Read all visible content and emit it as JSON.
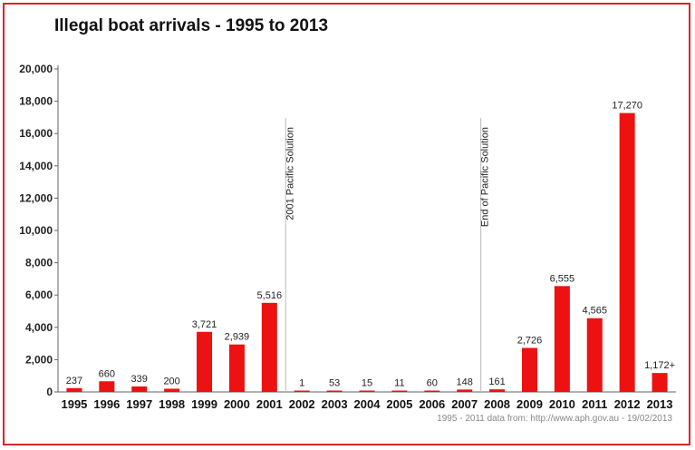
{
  "chart_data": {
    "type": "bar",
    "title": "Illegal boat arrivals - 1995 to 2013",
    "categories": [
      "1995",
      "1996",
      "1997",
      "1998",
      "1999",
      "2000",
      "2001",
      "2002",
      "2003",
      "2004",
      "2005",
      "2006",
      "2007",
      "2008",
      "2009",
      "2010",
      "2011",
      "2012",
      "2013"
    ],
    "values": [
      237,
      660,
      339,
      200,
      3721,
      2939,
      5516,
      1,
      53,
      15,
      11,
      60,
      148,
      161,
      2726,
      6555,
      4565,
      17270,
      1172
    ],
    "data_labels": [
      "237",
      "660",
      "339",
      "200",
      "3,721",
      "2,939",
      "5,516",
      "1",
      "53",
      "15",
      "11",
      "60",
      "148",
      "161",
      "2,726",
      "6,555",
      "4,565",
      "17,270",
      "1,172+"
    ],
    "yticks": [
      "0",
      "2,000",
      "4,000",
      "6,000",
      "8,000",
      "10,000",
      "12,000",
      "14,000",
      "16,000",
      "18,000",
      "20,000"
    ],
    "ylim": [
      0,
      20000
    ],
    "bar_color": "#ee1111",
    "grid": false,
    "annotations": [
      {
        "text": "2001 Pacific Solution",
        "after_category": "2001"
      },
      {
        "text": "End of Pacific Solution",
        "after_category": "2007"
      }
    ],
    "source_note": "1995 - 2011 data from: http://www.aph.gov.au - 19/02/2013"
  },
  "colors": {
    "frame": "#d9262a",
    "bar": "#ee1111"
  }
}
